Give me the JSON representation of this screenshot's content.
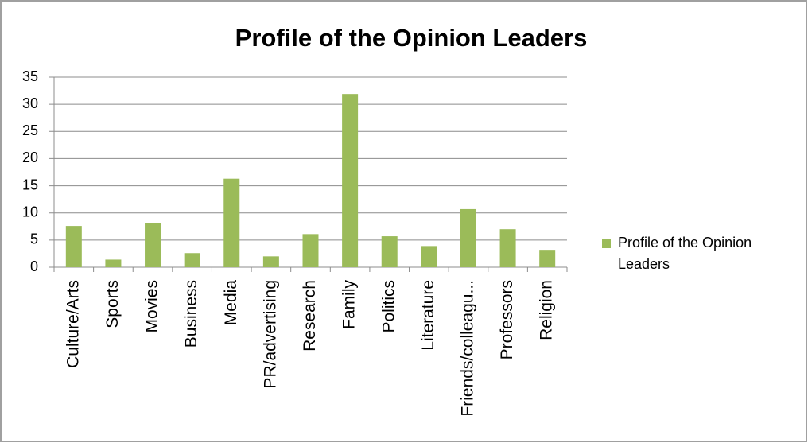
{
  "chart_data": {
    "type": "bar",
    "title": "Profile of the Opinion Leaders",
    "categories": [
      "Culture/Arts",
      "Sports",
      "Movies",
      "Business",
      "Media",
      "PR/advertising",
      "Research",
      "Family",
      "Politics",
      "Literature",
      "Friends/colleagu...",
      "Professors",
      "Religion"
    ],
    "series": [
      {
        "name": "Profile of the Opinion Leaders",
        "color": "#9bbb59",
        "values": [
          7.6,
          1.4,
          8.2,
          2.6,
          16.3,
          2.0,
          6.1,
          31.9,
          5.7,
          3.9,
          10.7,
          7.0,
          3.2
        ]
      }
    ],
    "ylim": [
      0,
      35
    ],
    "yticks": [
      0,
      5,
      10,
      15,
      20,
      25,
      30,
      35
    ],
    "grid": true,
    "legend": "right"
  }
}
